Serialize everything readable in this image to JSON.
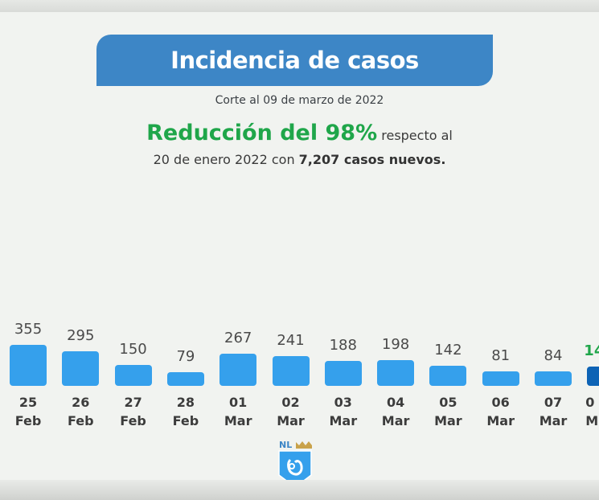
{
  "header": {
    "title": "Incidencia de casos",
    "subtitle": "Corte al 09 de marzo de 2022"
  },
  "summary": {
    "highlight": "Reducción del 98%",
    "text1": " respecto al",
    "text2a": "20 de enero 2022 con ",
    "text2b": "7,207 casos nuevos."
  },
  "colors": {
    "banner": "#3d86c6",
    "bar": "#35a0ec",
    "last_bar": "#0d63b5",
    "highlight": "#1fa64a"
  },
  "logo": {
    "text": "NL",
    "icon": "nuevo-leon-shield-logo"
  },
  "chart_data": {
    "type": "bar",
    "title": "",
    "categories": [
      {
        "day": "25",
        "month": "Feb"
      },
      {
        "day": "26",
        "month": "Feb"
      },
      {
        "day": "27",
        "month": "Feb"
      },
      {
        "day": "28",
        "month": "Feb"
      },
      {
        "day": "01",
        "month": "Mar"
      },
      {
        "day": "02",
        "month": "Mar"
      },
      {
        "day": "03",
        "month": "Mar"
      },
      {
        "day": "04",
        "month": "Mar"
      },
      {
        "day": "05",
        "month": "Mar"
      },
      {
        "day": "06",
        "month": "Mar"
      },
      {
        "day": "07",
        "month": "Mar"
      },
      {
        "day": "0",
        "month": "M"
      }
    ],
    "values": [
      355,
      295,
      150,
      79,
      267,
      241,
      188,
      198,
      142,
      81,
      84,
      null
    ],
    "labels": [
      "355",
      "295",
      "150",
      "79",
      "267",
      "241",
      "188",
      "198",
      "142",
      "81",
      "84",
      "14"
    ],
    "grid": false,
    "legend": "none"
  }
}
